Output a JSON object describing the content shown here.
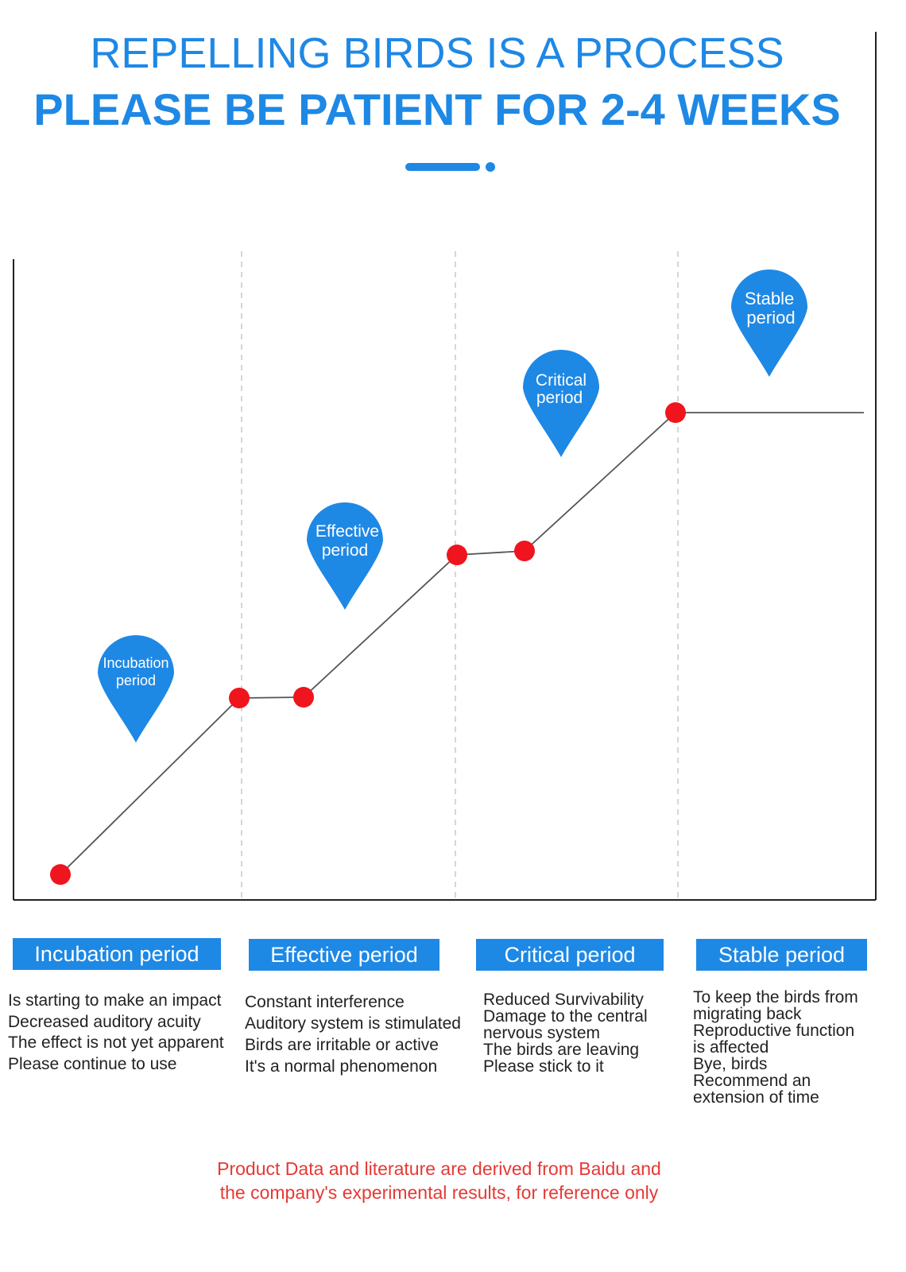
{
  "header": {
    "title_line1": "REPELLING BIRDS IS A PROCESS",
    "title_line2": "PLEASE BE PATIENT FOR 2-4 WEEKS"
  },
  "colors": {
    "accent": "#1e88e5",
    "point": "#f0141e",
    "note": "#e53935"
  },
  "markers": [
    {
      "lines": [
        "Incubation",
        "period"
      ]
    },
    {
      "lines": [
        "Effective",
        "period"
      ]
    },
    {
      "lines": [
        "Critical",
        "period"
      ]
    },
    {
      "lines": [
        "Stable",
        "period"
      ]
    }
  ],
  "phases": [
    {
      "label": "Incubation period",
      "lines": [
        "Is starting to make an impact",
        "Decreased auditory acuity",
        "The effect is not yet apparent",
        "Please continue to use"
      ]
    },
    {
      "label": "Effective period",
      "lines": [
        "Constant interference",
        "Auditory system is stimulated",
        "Birds are irritable or active",
        "It's a normal phenomenon"
      ]
    },
    {
      "label": "Critical period",
      "lines": [
        "Reduced Survivability",
        "Damage to the central",
        "nervous system",
        "The birds are leaving",
        "Please stick to it"
      ]
    },
    {
      "label": "Stable period",
      "lines": [
        "To keep the birds from",
        "migrating back",
        "Reproductive function",
        "is affected",
        "Bye, birds",
        "Recommend an",
        "extension of time"
      ]
    }
  ],
  "footnote": {
    "line1": "Product Data and literature are derived from Baidu and",
    "line2": "the company's experimental results, for reference only"
  }
}
